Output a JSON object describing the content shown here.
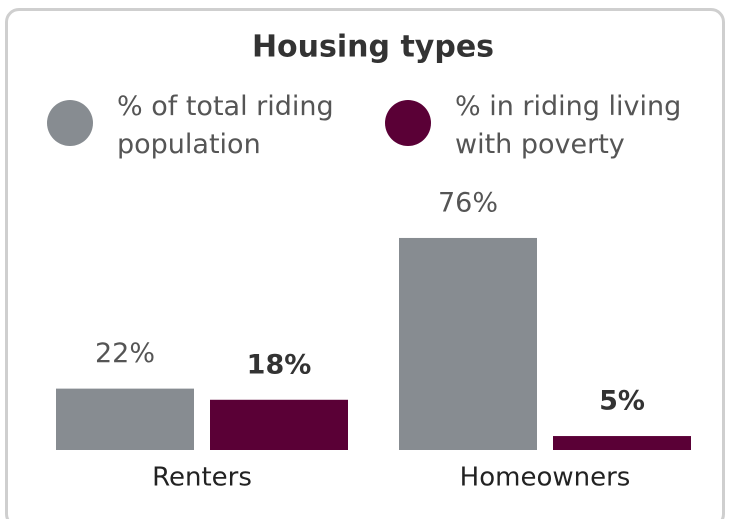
{
  "chart_data": {
    "type": "bar",
    "title": "Housing types",
    "categories": [
      "Renters",
      "Homeowners"
    ],
    "series": [
      {
        "name": "% of total riding population",
        "color": "#878c91",
        "values": [
          22,
          76
        ],
        "value_labels": [
          "22%",
          "76%"
        ]
      },
      {
        "name": "% in riding living with poverty",
        "color": "#5a0036",
        "values": [
          18,
          5
        ],
        "value_labels": [
          "18%",
          "5%"
        ]
      }
    ],
    "legend": "top"
  }
}
